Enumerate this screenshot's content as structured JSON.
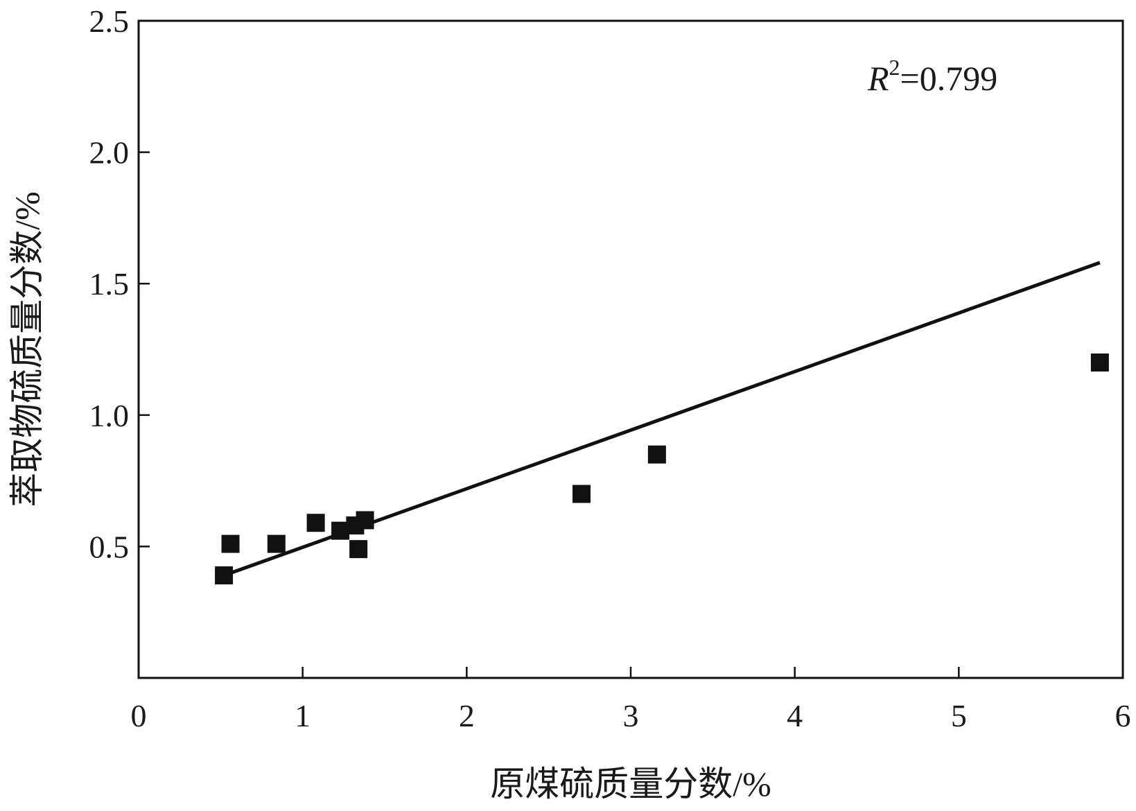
{
  "chart_data": {
    "type": "scatter",
    "title": "",
    "xlabel": "原煤硫质量分数/%",
    "ylabel": "萃取物硫质量分数/%",
    "xlim": [
      0,
      6
    ],
    "ylim": [
      0,
      2.5
    ],
    "x_ticks": [
      "0",
      "1",
      "2",
      "3",
      "4",
      "5",
      "6"
    ],
    "y_ticks": [
      "0.5",
      "1.0",
      "1.5",
      "2.0",
      "2.5"
    ],
    "x_tick_values": [
      0,
      1,
      2,
      3,
      4,
      5,
      6
    ],
    "y_tick_values": [
      0.5,
      1.0,
      1.5,
      2.0,
      2.5
    ],
    "points": [
      {
        "x": 0.52,
        "y": 0.39
      },
      {
        "x": 0.56,
        "y": 0.51
      },
      {
        "x": 0.84,
        "y": 0.51
      },
      {
        "x": 1.08,
        "y": 0.59
      },
      {
        "x": 1.23,
        "y": 0.56
      },
      {
        "x": 1.32,
        "y": 0.58
      },
      {
        "x": 1.34,
        "y": 0.49
      },
      {
        "x": 1.38,
        "y": 0.6
      },
      {
        "x": 2.7,
        "y": 0.7
      },
      {
        "x": 3.16,
        "y": 0.85
      },
      {
        "x": 5.86,
        "y": 1.2
      }
    ],
    "trendline": {
      "x": [
        0.52,
        5.86
      ],
      "y": [
        0.39,
        1.58
      ]
    },
    "annotation": {
      "symbol": "R",
      "superscript": "2",
      "text": "=0.799"
    },
    "grid": false,
    "marker_color": "#111111",
    "line_color": "#111111"
  }
}
